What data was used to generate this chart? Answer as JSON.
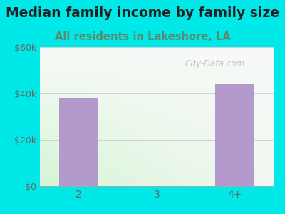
{
  "title": "Median family income by family size",
  "subtitle": "All residents in Lakeshore, LA",
  "categories": [
    "2",
    "3",
    "4+"
  ],
  "values": [
    38000,
    0,
    44000
  ],
  "bar_color": "#b399cc",
  "bg_color": "#00e8e8",
  "ylim": [
    0,
    60000
  ],
  "yticks": [
    0,
    20000,
    40000,
    60000
  ],
  "ytick_labels": [
    "$0",
    "$20k",
    "$40k",
    "$60k"
  ],
  "title_color": "#222222",
  "subtitle_color": "#5a8a6a",
  "tick_color": "#666666",
  "watermark": "City-Data.com",
  "title_fontsize": 13.5,
  "subtitle_fontsize": 10.5,
  "gradient_top": "#f0f8f0",
  "gradient_bottom": "#e8fae8",
  "gradient_right": "#f8f8f8"
}
